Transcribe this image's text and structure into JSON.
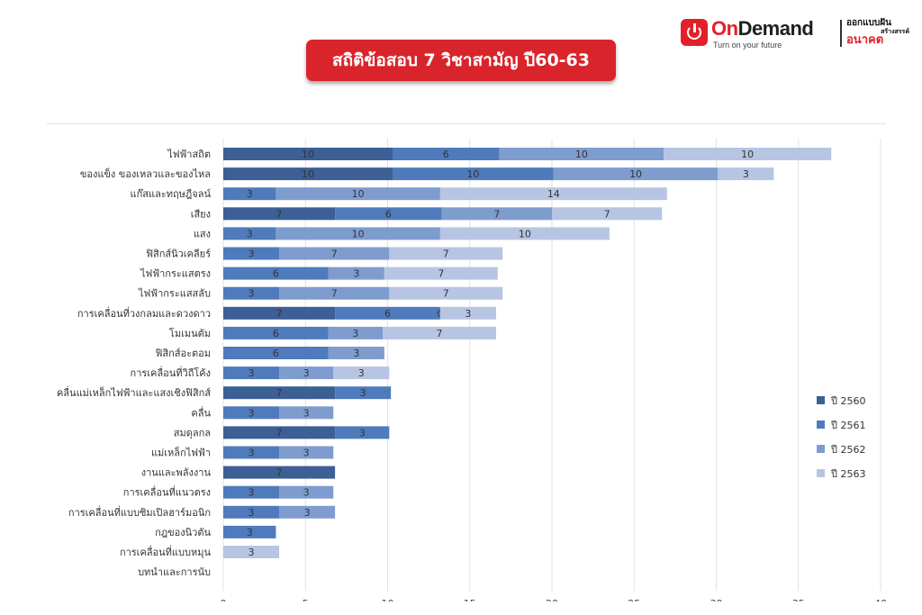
{
  "brand": {
    "name_prefix": "On",
    "name_suffix": "Demand",
    "tagline": "Turn on your future",
    "slogan_line1": "ออกแบบฝัน",
    "slogan_line2": "สร้างสรรค์",
    "slogan_line3": "อนาคต",
    "icon": "power-icon",
    "accent": "#e3202a"
  },
  "title": "สถิติข้อสอบ 7 วิชาสามัญ ปี60-63",
  "chart_data": {
    "type": "bar",
    "orientation": "horizontal",
    "stacked": true,
    "categories": [
      "ไฟฟ้าสถิต",
      "ของแข็ง ของเหลวและของไหล",
      "แก๊สและทฤษฎีจลน์",
      "เสียง",
      "แสง",
      "ฟิสิกส์นิวเคลียร์",
      "ไฟฟ้ากระแสตรง",
      "ไฟฟ้ากระแสสลับ",
      "การเคลื่อนที่วงกลมและดวงดาว",
      "โมเมนตัม",
      "ฟิสิกส์อะตอม",
      "การเคลื่อนที่วิถีโค้ง",
      "คลื่นแม่เหล็กไฟฟ้าและแสงเชิงฟิสิกส์",
      "คลื่น",
      "สมดุลกล",
      "แม่เหล็กไฟฟ้า",
      "งานและพลังงาน",
      "การเคลื่อนที่แนวตรง",
      "การเคลื่อนที่แบบซิมเปิลฮาร์มอนิก",
      "กฎของนิวตัน",
      "การเคลื่อนที่แบบหมุน",
      "บทนำและการนับ"
    ],
    "series": [
      {
        "name": "ปี 2560",
        "color": "#3c5f96",
        "values": [
          10.3,
          10.3,
          0,
          6.8,
          0,
          0,
          0,
          0,
          6.8,
          0,
          0,
          0,
          6.8,
          0,
          6.8,
          0,
          6.8,
          0,
          0,
          0,
          0,
          0
        ],
        "labels": [
          "10",
          "10",
          "",
          "7",
          "",
          "",
          "",
          "",
          "7",
          "",
          "",
          "",
          "7",
          "",
          "7",
          "",
          "7",
          "",
          "",
          "",
          "",
          ""
        ]
      },
      {
        "name": "ปี 2561",
        "color": "#4f7bbd",
        "values": [
          6.5,
          9.8,
          3.2,
          6.5,
          3.2,
          3.4,
          6.4,
          3.4,
          6.4,
          6.4,
          6.4,
          3.4,
          3.4,
          3.4,
          3.3,
          3.4,
          0,
          3.4,
          3.4,
          3.2,
          0,
          0
        ],
        "labels": [
          "6",
          "10",
          "3",
          "6",
          "3",
          "3",
          "6",
          "3",
          "6",
          "6",
          "6",
          "3",
          "3",
          "3",
          "3",
          "3",
          "",
          "3",
          "3",
          "3",
          "",
          ""
        ]
      },
      {
        "name": "ปี 2562",
        "color": "#7f9ccf",
        "values": [
          10,
          10,
          10,
          6.7,
          10,
          6.7,
          3.4,
          6.7,
          0,
          3.3,
          3.4,
          3.3,
          0,
          3.3,
          0,
          3.3,
          0,
          3.3,
          3.4,
          0,
          0,
          0
        ],
        "labels": [
          "10",
          "10",
          "10",
          "7",
          "10",
          "7",
          "3",
          "7",
          "0",
          "3",
          "3",
          "3",
          "",
          "3",
          "",
          "3",
          "",
          "3",
          "3",
          "",
          "",
          ""
        ]
      },
      {
        "name": "ปี 2563",
        "color": "#b7c5e3",
        "values": [
          10.2,
          3.4,
          13.8,
          6.7,
          10.3,
          6.9,
          6.9,
          6.9,
          3.4,
          6.9,
          0,
          3.4,
          0,
          0,
          0,
          0,
          0,
          0,
          0,
          0,
          3.4,
          0
        ],
        "labels": [
          "10",
          "3",
          "14",
          "7",
          "10",
          "7",
          "7",
          "7",
          "3",
          "7",
          "",
          "3",
          "",
          "",
          "",
          "",
          "",
          "",
          "",
          "",
          "3",
          ""
        ]
      }
    ],
    "xlim": [
      0,
      40
    ],
    "xticks": [
      0,
      5,
      10,
      15,
      20,
      25,
      30,
      35,
      40
    ],
    "grid": true,
    "legend": "right"
  }
}
